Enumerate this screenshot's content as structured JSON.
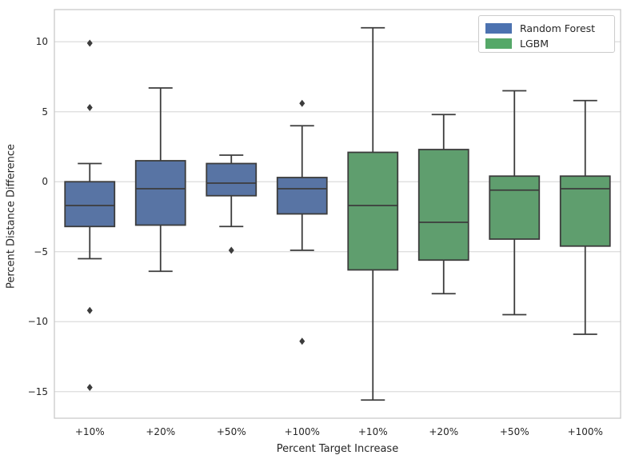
{
  "figure": {
    "background_color": "#ffffff",
    "title": "",
    "ylabel": "Percent Distance Difference",
    "xlabel": "Percent Target Increase"
  },
  "legend": {
    "position": "upper right",
    "entries": [
      {
        "label": "Random Forest",
        "color": "#4C72B0"
      },
      {
        "label": "LGBM",
        "color": "#55A868"
      }
    ]
  },
  "colors": {
    "box_fill_random_forest": "#5874A4",
    "box_fill_lgbm": "#5F9E6E",
    "box_edge": "#3C3C3C",
    "gridline": "#dcdcdc",
    "spine": "#c6c6c6",
    "text": "#262626"
  },
  "chart_data": {
    "type": "boxplot",
    "title": "",
    "xlabel": "Percent Target Increase",
    "ylabel": "Percent Distance Difference",
    "categories": [
      "+10%",
      "+20%",
      "+50%",
      "+100%",
      "+10%",
      "+20%",
      "+50%",
      "+100%"
    ],
    "ytick_values": [
      10,
      5,
      0,
      -5,
      -10,
      -15
    ],
    "ytick_labels": [
      "10",
      "5",
      "0",
      "−5",
      "−10",
      "−15"
    ],
    "ylim": [
      -16.9,
      12.3
    ],
    "grid": true,
    "legend_position": "upper right",
    "series_names": [
      "Random Forest",
      "LGBM"
    ],
    "boxes": [
      {
        "series": "Random Forest",
        "category": "+10%",
        "whislo": -5.5,
        "q1": -3.2,
        "med": -1.7,
        "q3": 0.0,
        "whishi": 1.3,
        "fliers": [
          9.9,
          5.3,
          -9.2,
          -14.7
        ]
      },
      {
        "series": "Random Forest",
        "category": "+20%",
        "whislo": -6.4,
        "q1": -3.1,
        "med": -0.5,
        "q3": 1.5,
        "whishi": 6.7,
        "fliers": []
      },
      {
        "series": "Random Forest",
        "category": "+50%",
        "whislo": -3.2,
        "q1": -1.0,
        "med": -0.1,
        "q3": 1.3,
        "whishi": 1.9,
        "fliers": [
          -4.9
        ]
      },
      {
        "series": "Random Forest",
        "category": "+100%",
        "whislo": -4.9,
        "q1": -2.3,
        "med": -0.5,
        "q3": 0.3,
        "whishi": 4.0,
        "fliers": [
          5.6,
          -11.4
        ]
      },
      {
        "series": "LGBM",
        "category": "+10%",
        "whislo": -15.6,
        "q1": -6.3,
        "med": -1.7,
        "q3": 2.1,
        "whishi": 11.0,
        "fliers": []
      },
      {
        "series": "LGBM",
        "category": "+20%",
        "whislo": -8.0,
        "q1": -5.6,
        "med": -2.9,
        "q3": 2.3,
        "whishi": 4.8,
        "fliers": []
      },
      {
        "series": "LGBM",
        "category": "+50%",
        "whislo": -9.5,
        "q1": -4.1,
        "med": -0.6,
        "q3": 0.4,
        "whishi": 6.5,
        "fliers": []
      },
      {
        "series": "LGBM",
        "category": "+100%",
        "whislo": -10.9,
        "q1": -4.6,
        "med": -0.5,
        "q3": 0.4,
        "whishi": 5.8,
        "fliers": []
      }
    ]
  }
}
